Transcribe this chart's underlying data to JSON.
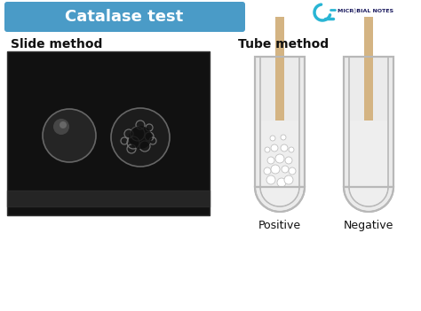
{
  "title": "Catalase test",
  "title_bg": "#4a9bc7",
  "title_text_color": "#ffffff",
  "slide_method_label": "Slide method",
  "tube_method_label": "Tube method",
  "positive_label": "Positive",
  "negative_label": "Negative",
  "brand_text": "MICR○BIAL NOTES",
  "bg_color": "#ffffff",
  "tube_outer_color": "#b8b8b8",
  "tube_inner_bg": "#f5f5f5",
  "tube_wall_color": "#c0c0c0",
  "stick_color": "#d4b483",
  "bubble_fill": "#e8e8e8",
  "bubble_edge": "#b0b0b0",
  "liq_color": "#eeeeee",
  "photo_bg": "#111111",
  "photo_border": "#333333",
  "drop_left_color": "#2a2a2a",
  "drop_right_color": "#1e1e1e",
  "slide_reflection": "#3a3a3a"
}
